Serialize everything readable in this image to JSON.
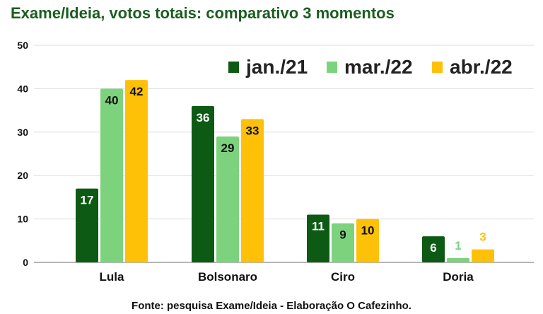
{
  "title": "Exame/Ideia, votos totais: comparativo 3 momentos",
  "source": "Fonte: pesquisa Exame/Ideia - Elaboração O Cafezinho.",
  "chart_data": {
    "type": "bar",
    "title": "Exame/Ideia, votos totais: comparativo 3 momentos",
    "xlabel": "",
    "ylabel": "",
    "ylim": [
      0,
      50
    ],
    "yticks": [
      "0",
      "10",
      "20",
      "30",
      "40",
      "50"
    ],
    "grid": true,
    "legend_position": "top-right",
    "categories": [
      "Lula",
      "Bolsonaro",
      "Ciro",
      "Doria"
    ],
    "series": [
      {
        "name": "jan./21",
        "color": "#0d5a14",
        "values": [
          17,
          36,
          11,
          6
        ],
        "labels": [
          "17",
          "36",
          "11",
          "6"
        ]
      },
      {
        "name": "mar./22",
        "color": "#7dd37d",
        "values": [
          40,
          29,
          9,
          1
        ],
        "labels": [
          "40",
          "29",
          "9",
          "1"
        ]
      },
      {
        "name": "abr./22",
        "color": "#ffc107",
        "values": [
          42,
          33,
          10,
          3
        ],
        "labels": [
          "42",
          "33",
          "10",
          "3"
        ]
      }
    ]
  }
}
